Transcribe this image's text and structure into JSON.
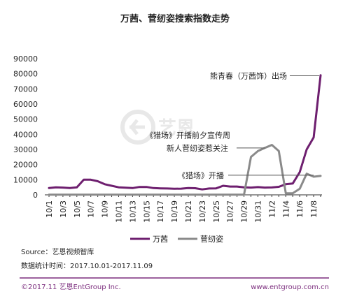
{
  "chart_data": {
    "type": "line",
    "title": "万茜、菅纫姿搜索指数走势",
    "ylim": [
      0,
      90000
    ],
    "y_ticks": [
      0,
      10000,
      20000,
      30000,
      40000,
      50000,
      60000,
      70000,
      80000,
      90000
    ],
    "x": [
      "10/1",
      "10/2",
      "10/3",
      "10/4",
      "10/5",
      "10/6",
      "10/7",
      "10/8",
      "10/9",
      "10/10",
      "10/11",
      "10/12",
      "10/13",
      "10/14",
      "10/15",
      "10/16",
      "10/17",
      "10/18",
      "10/19",
      "10/20",
      "10/21",
      "10/22",
      "10/23",
      "10/24",
      "10/25",
      "10/26",
      "10/27",
      "10/28",
      "10/29",
      "10/30",
      "10/31",
      "11/1",
      "11/2",
      "11/3",
      "11/4",
      "11/5",
      "11/6",
      "11/7",
      "11/8",
      "11/9"
    ],
    "x_tick_labels": [
      "10/1",
      "10/3",
      "10/5",
      "10/7",
      "10/9",
      "10/11",
      "10/13",
      "10/15",
      "10/17",
      "10/19",
      "10/21",
      "10/23",
      "10/25",
      "10/27",
      "10/29",
      "10/31",
      "11/2",
      "11/4",
      "11/6",
      "11/8"
    ],
    "series": [
      {
        "name": "万茜",
        "color": "#6e1f6f",
        "values": [
          4500,
          5000,
          4800,
          4500,
          5000,
          10000,
          10000,
          9000,
          7000,
          6000,
          5000,
          4700,
          4500,
          5200,
          5200,
          4500,
          4300,
          4200,
          4000,
          4100,
          4500,
          4400,
          3600,
          4200,
          4300,
          6000,
          5500,
          5500,
          5000,
          4800,
          5100,
          4800,
          4900,
          5300,
          7000,
          7500,
          15000,
          30000,
          38000,
          79000
        ]
      },
      {
        "name": "菅纫姿",
        "color": "#8a8a8a",
        "values": [
          100,
          100,
          100,
          100,
          100,
          100,
          100,
          100,
          100,
          100,
          100,
          100,
          100,
          100,
          100,
          100,
          100,
          100,
          100,
          100,
          100,
          100,
          100,
          100,
          100,
          100,
          100,
          100,
          100,
          25000,
          29000,
          31000,
          33000,
          29000,
          1000,
          1000,
          4000,
          14000,
          12000,
          12500
        ]
      }
    ],
    "annotations": [
      {
        "text": "熊青春（万茜饰）出场",
        "x": "11/9",
        "y": 79000
      },
      {
        "text": "《猎场》开播前夕宣传周",
        "x": "10/30",
        "y": 31000
      },
      {
        "text": "新人菅纫姿惹关注",
        "x": "11/1",
        "y": 31000
      },
      {
        "text": "《猎场》开播",
        "x": "11/6",
        "y": 12500
      }
    ],
    "legend_position": "bottom",
    "grid": false
  },
  "source_text": "Source：艺恩视频智库",
  "stat_period": "数据统计时间：2017.10.01-2017.11.09",
  "copyright": "©2017.11 艺恩EntGroup Inc.",
  "website": "www.entgroup.com.cn",
  "watermark_text": "艺恩",
  "colors": {
    "footer_line": "#7b2d7d",
    "axis": "#333333"
  }
}
